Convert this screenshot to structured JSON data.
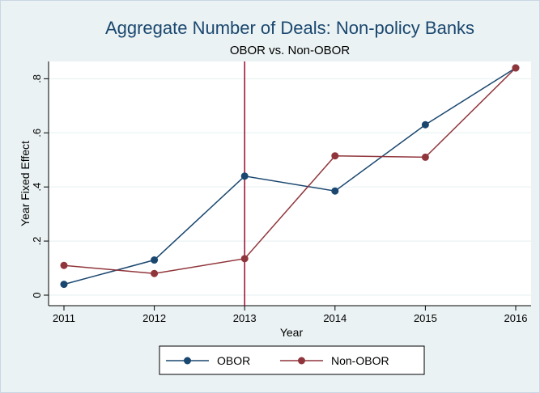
{
  "chart_data": {
    "type": "line",
    "title": "Aggregate Number of Deals: Non-policy Banks",
    "subtitle": "OBOR vs. Non-OBOR",
    "xlabel": "Year",
    "ylabel": "Year Fixed Effect",
    "x": [
      2011,
      2012,
      2013,
      2014,
      2015,
      2016
    ],
    "xticks": [
      "2011",
      "2012",
      "2013",
      "2014",
      "2015",
      "2016"
    ],
    "yticks": [
      {
        "value": 0,
        "label": "0"
      },
      {
        "value": 0.2,
        "label": ".2"
      },
      {
        "value": 0.4,
        "label": ".4"
      },
      {
        "value": 0.6,
        "label": ".6"
      },
      {
        "value": 0.8,
        "label": ".8"
      }
    ],
    "xlim": [
      2011,
      2016
    ],
    "ylim": [
      0,
      0.84
    ],
    "grid": "horizontal",
    "legend_position": "bottom",
    "vline": {
      "x": 2013,
      "color": "#990c2a"
    },
    "series": [
      {
        "name": "OBOR",
        "color": "#1a476f",
        "values": [
          0.04,
          0.13,
          0.44,
          0.385,
          0.63,
          0.84
        ]
      },
      {
        "name": "Non-OBOR",
        "color": "#90353b",
        "values": [
          0.11,
          0.08,
          0.135,
          0.515,
          0.51,
          0.84
        ]
      }
    ]
  }
}
